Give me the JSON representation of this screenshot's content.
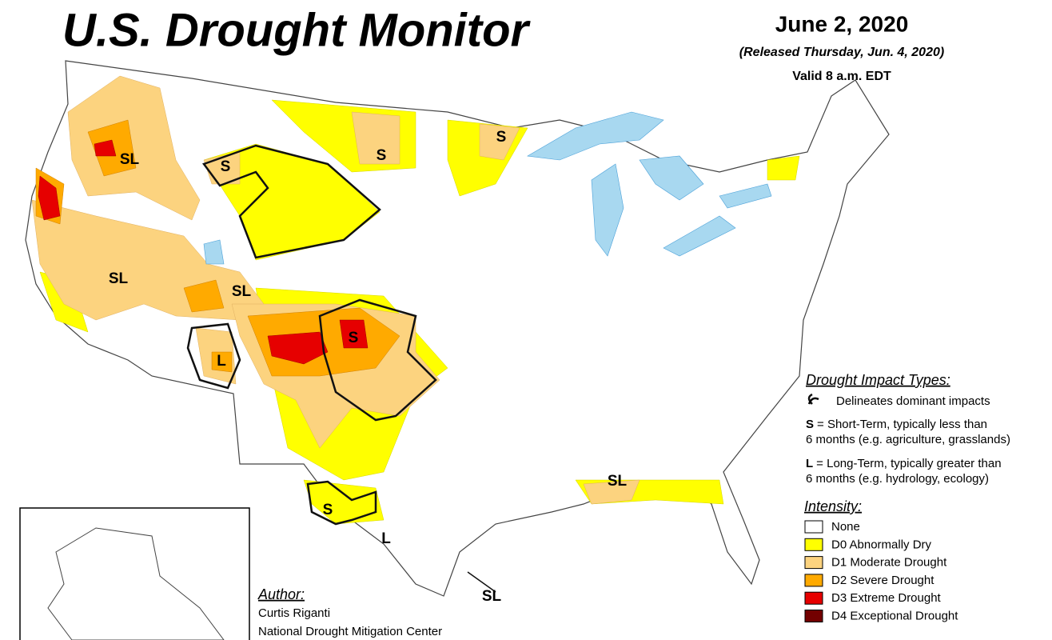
{
  "header": {
    "title": "U.S. Drought Monitor",
    "date": "June 2, 2020",
    "released": "(Released Thursday, Jun. 4, 2020)",
    "valid": "Valid 8 a.m. EDT"
  },
  "impact_types": {
    "heading": "Drought Impact Types:",
    "line_note": "Delineates dominant impacts",
    "short_term": {
      "code": "S",
      "text": "= Short-Term, typically less than",
      "text2": "6 months (e.g. agriculture, grasslands)"
    },
    "long_term": {
      "code": "L",
      "text": "= Long-Term, typically greater than",
      "text2": "6 months (e.g. hydrology, ecology)"
    }
  },
  "intensity": {
    "heading": "Intensity:",
    "levels": [
      {
        "label": "None",
        "color": "#ffffff"
      },
      {
        "label": "D0 Abnormally Dry",
        "color": "#ffff00"
      },
      {
        "label": "D1 Moderate Drought",
        "color": "#fcd37f"
      },
      {
        "label": "D2 Severe Drought",
        "color": "#ffaa00"
      },
      {
        "label": "D3 Extreme Drought",
        "color": "#e60000"
      },
      {
        "label": "D4 Exceptional Drought",
        "color": "#730000"
      }
    ]
  },
  "author": {
    "heading": "Author:",
    "name": "Curtis Riganti",
    "org": "National Drought Mitigation Center"
  },
  "map_labels": [
    "SL",
    "S",
    "S",
    "S",
    "SL",
    "SL",
    "L",
    "S",
    "S",
    "L",
    "SL",
    "SL"
  ]
}
